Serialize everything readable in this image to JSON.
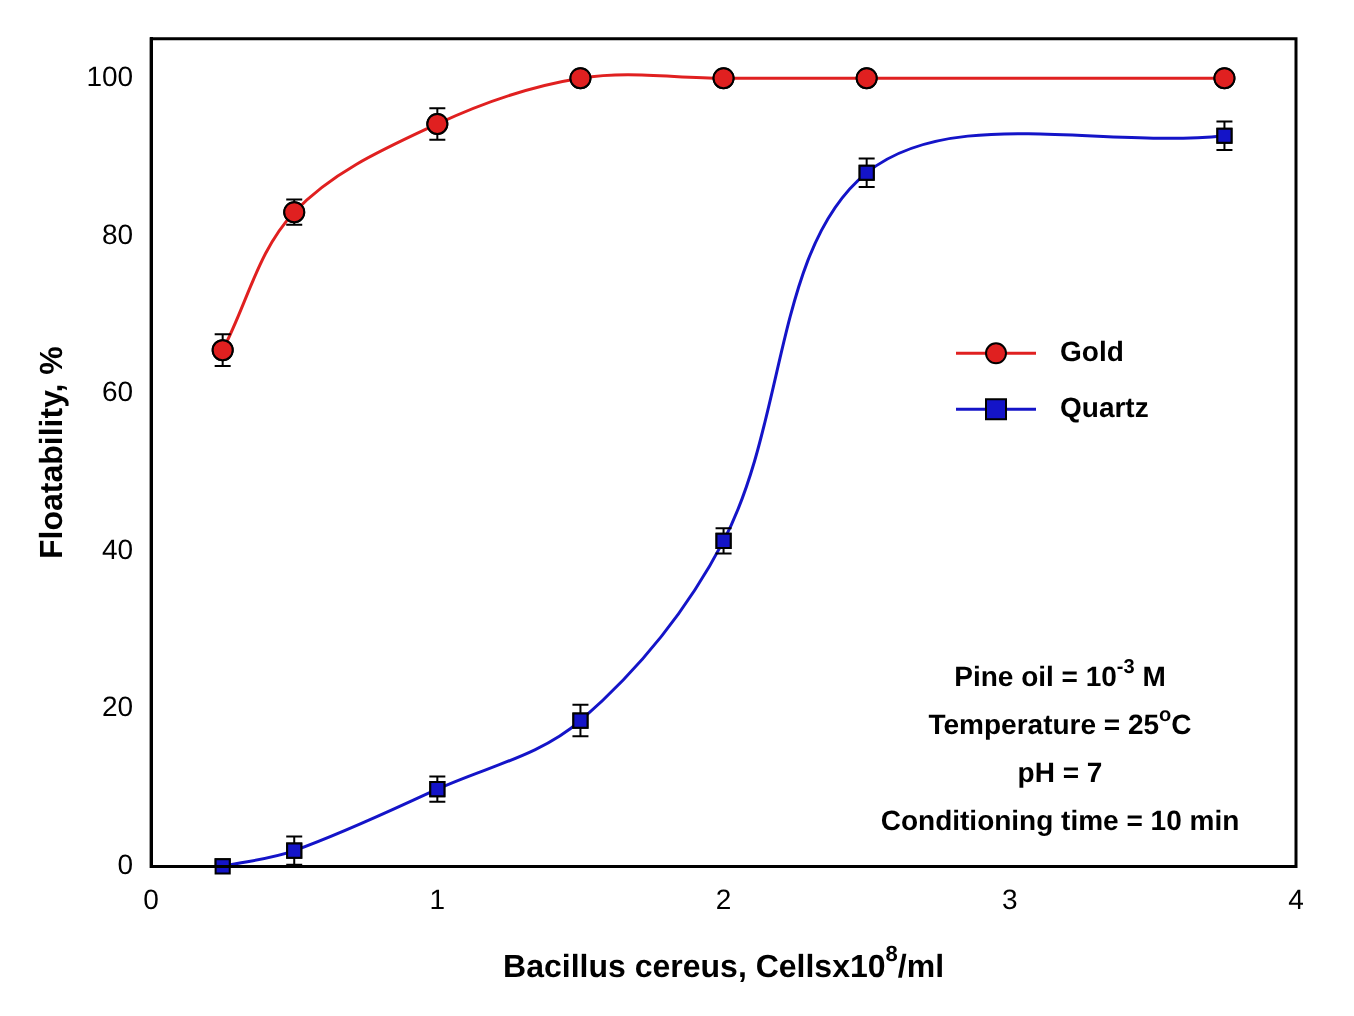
{
  "chart_data": {
    "type": "line",
    "xlabel": "Bacillus cereus, Cellsx10$^{8}$/ml",
    "ylabel": "Floatability, %",
    "x": [
      0.25,
      0.5,
      1,
      1.5,
      2,
      2.5,
      3.75
    ],
    "series": [
      {
        "name": "Gold",
        "color": "#e02020",
        "marker": "circle",
        "values": [
          65.5,
          83,
          94.2,
          100,
          100,
          100,
          100
        ],
        "errors": [
          2,
          1.6,
          2,
          0.5,
          0.5,
          0.5,
          0.5
        ]
      },
      {
        "name": "Quartz",
        "color": "#1414c8",
        "marker": "square",
        "values": [
          0,
          2,
          9.8,
          18.5,
          41.3,
          88,
          92.7
        ],
        "errors": [
          null,
          1.8,
          1.6,
          2,
          1.6,
          1.8,
          1.8
        ]
      }
    ],
    "xlim": [
      0,
      4
    ],
    "xticks": [
      0,
      1,
      2,
      3,
      4
    ],
    "ylim": [
      0,
      105
    ],
    "yticks": [
      0,
      20,
      40,
      60,
      80,
      100
    ],
    "grid": false,
    "legend": "right",
    "annotations": [
      "Pine oil = 10$^{-3}$ M",
      "Temperature = 25$^{o}$C",
      "pH = 7",
      "Conditioning time = 10 min"
    ]
  }
}
